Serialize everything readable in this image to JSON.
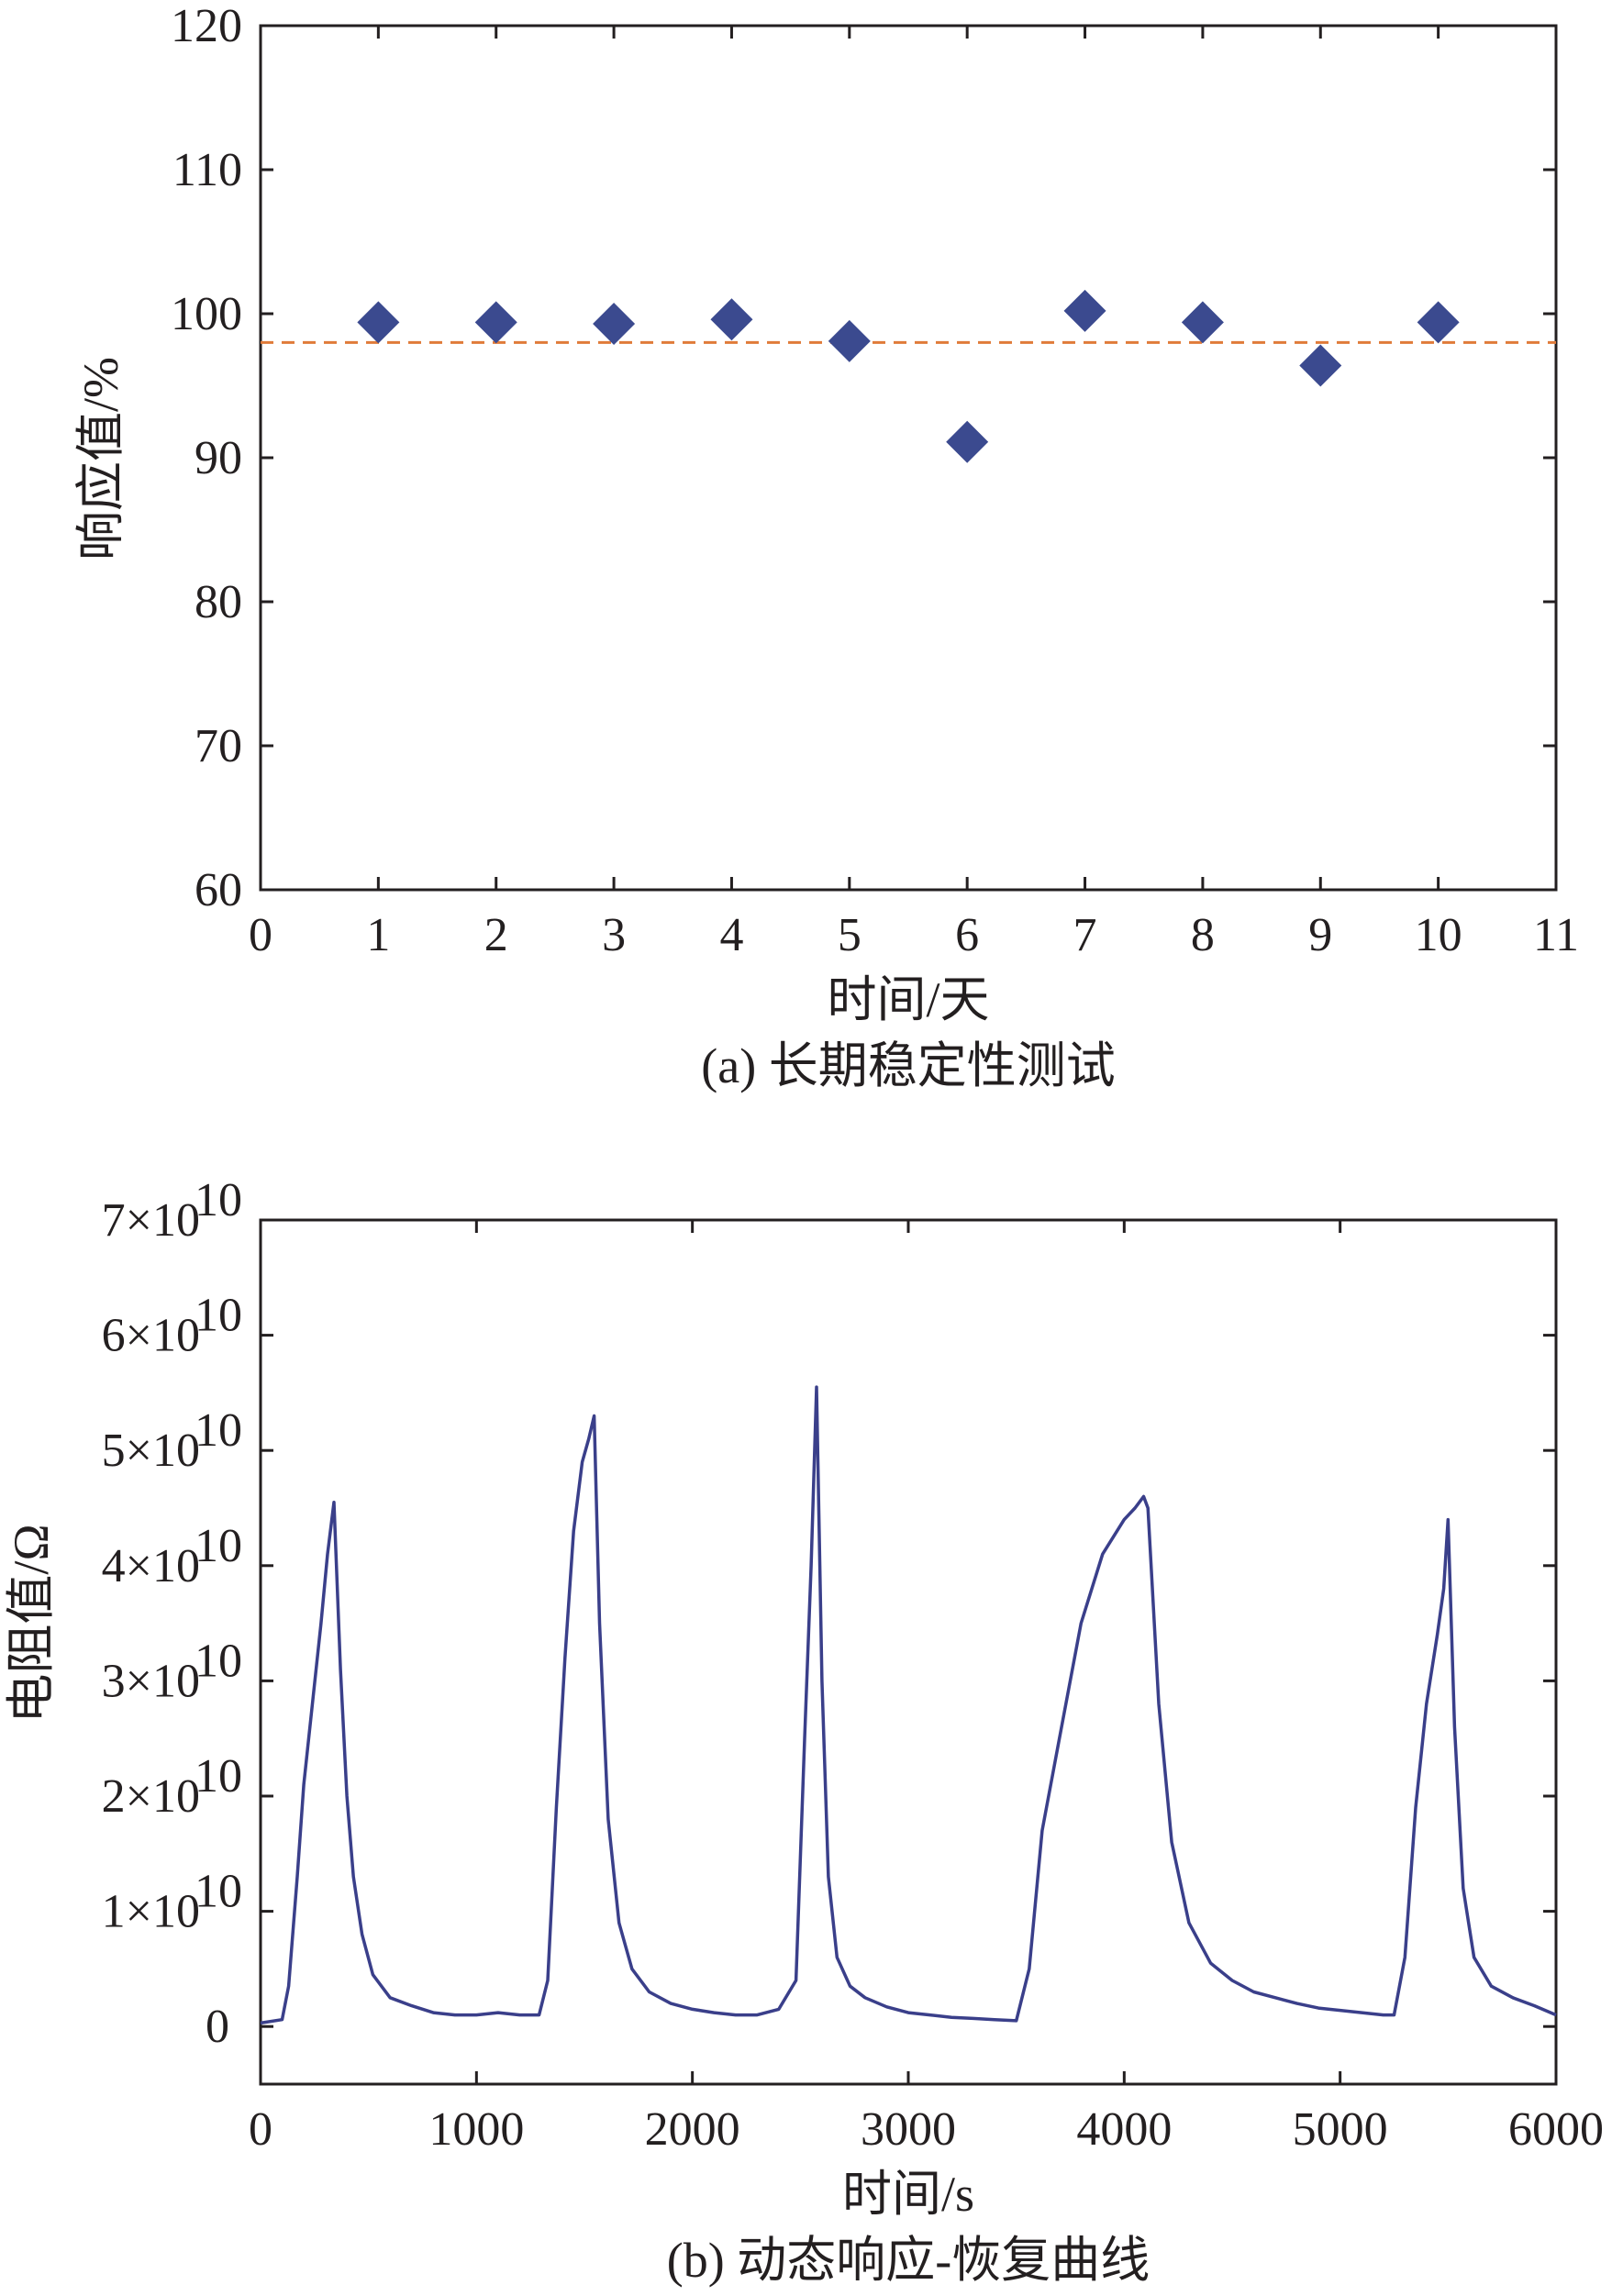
{
  "chart_data": [
    {
      "type": "scatter",
      "xlabel": "时间/天",
      "ylabel": "响应值/%",
      "caption": "(a) 长期稳定性测试",
      "xlim": [
        0,
        11
      ],
      "ylim": [
        60,
        120
      ],
      "xticks": [
        "0",
        "1",
        "2",
        "3",
        "4",
        "5",
        "6",
        "7",
        "8",
        "9",
        "10",
        "11"
      ],
      "yticks": [
        "60",
        "70",
        "80",
        "90",
        "100",
        "110",
        "120"
      ],
      "marker": "diamond",
      "series_color": "#3b4a8f",
      "reference_line": {
        "y": 98,
        "style": "dashed",
        "color": "#e07b39"
      },
      "x": [
        1,
        2,
        3,
        4,
        5,
        6,
        7,
        8,
        9,
        10
      ],
      "y": [
        99.4,
        99.4,
        99.3,
        99.6,
        98.1,
        91.1,
        100.2,
        99.4,
        96.4,
        99.4
      ]
    },
    {
      "type": "line",
      "xlabel": "时间/s",
      "ylabel": "电阻值/Ω",
      "caption": "(b) 动态响应-恢复曲线",
      "xlim": [
        0,
        6000
      ],
      "ylim": [
        -0.5,
        7
      ],
      "y_unit_exponent": "10",
      "xticks": [
        "0",
        "1000",
        "2000",
        "3000",
        "4000",
        "5000",
        "6000"
      ],
      "yticks": [
        {
          "value": 0,
          "mantissa": "0",
          "exp": ""
        },
        {
          "value": 1,
          "mantissa": "1×10",
          "exp": "10"
        },
        {
          "value": 2,
          "mantissa": "2×10",
          "exp": "10"
        },
        {
          "value": 3,
          "mantissa": "3×10",
          "exp": "10"
        },
        {
          "value": 4,
          "mantissa": "4×10",
          "exp": "10"
        },
        {
          "value": 5,
          "mantissa": "5×10",
          "exp": "10"
        },
        {
          "value": 6,
          "mantissa": "6×10",
          "exp": "10"
        },
        {
          "value": 7,
          "mantissa": "7×10",
          "exp": "10"
        }
      ],
      "series_color": "#3a3f8a",
      "x": [
        0,
        100,
        130,
        170,
        200,
        240,
        280,
        310,
        340,
        370,
        400,
        430,
        470,
        520,
        600,
        700,
        800,
        900,
        1000,
        1100,
        1200,
        1290,
        1330,
        1370,
        1410,
        1450,
        1490,
        1520,
        1545,
        1570,
        1610,
        1660,
        1720,
        1800,
        1900,
        2000,
        2100,
        2200,
        2300,
        2400,
        2480,
        2520,
        2550,
        2575,
        2600,
        2630,
        2670,
        2730,
        2800,
        2900,
        3000,
        3100,
        3200,
        3300,
        3400,
        3500,
        3560,
        3620,
        3700,
        3800,
        3900,
        4000,
        4050,
        4090,
        4110,
        4160,
        4220,
        4300,
        4400,
        4500,
        4600,
        4700,
        4800,
        4900,
        5000,
        5100,
        5200,
        5250,
        5300,
        5350,
        5400,
        5450,
        5480,
        5500,
        5530,
        5570,
        5620,
        5700,
        5800,
        5900,
        6000
      ],
      "y": [
        0.03,
        0.06,
        0.35,
        1.3,
        2.1,
        2.8,
        3.5,
        4.1,
        4.55,
        3.1,
        2.0,
        1.3,
        0.8,
        0.45,
        0.25,
        0.18,
        0.12,
        0.1,
        0.1,
        0.12,
        0.1,
        0.1,
        0.4,
        1.9,
        3.2,
        4.3,
        4.9,
        5.1,
        5.3,
        3.5,
        1.8,
        0.9,
        0.5,
        0.3,
        0.2,
        0.15,
        0.12,
        0.1,
        0.1,
        0.15,
        0.4,
        2.5,
        4.0,
        5.55,
        3.0,
        1.3,
        0.6,
        0.35,
        0.25,
        0.17,
        0.12,
        0.1,
        0.08,
        0.07,
        0.06,
        0.05,
        0.5,
        1.7,
        2.5,
        3.5,
        4.1,
        4.4,
        4.5,
        4.6,
        4.5,
        2.8,
        1.6,
        0.9,
        0.55,
        0.4,
        0.3,
        0.25,
        0.2,
        0.16,
        0.14,
        0.12,
        0.1,
        0.1,
        0.6,
        1.9,
        2.8,
        3.4,
        3.8,
        4.4,
        2.6,
        1.2,
        0.6,
        0.35,
        0.25,
        0.18,
        0.1
      ]
    }
  ]
}
